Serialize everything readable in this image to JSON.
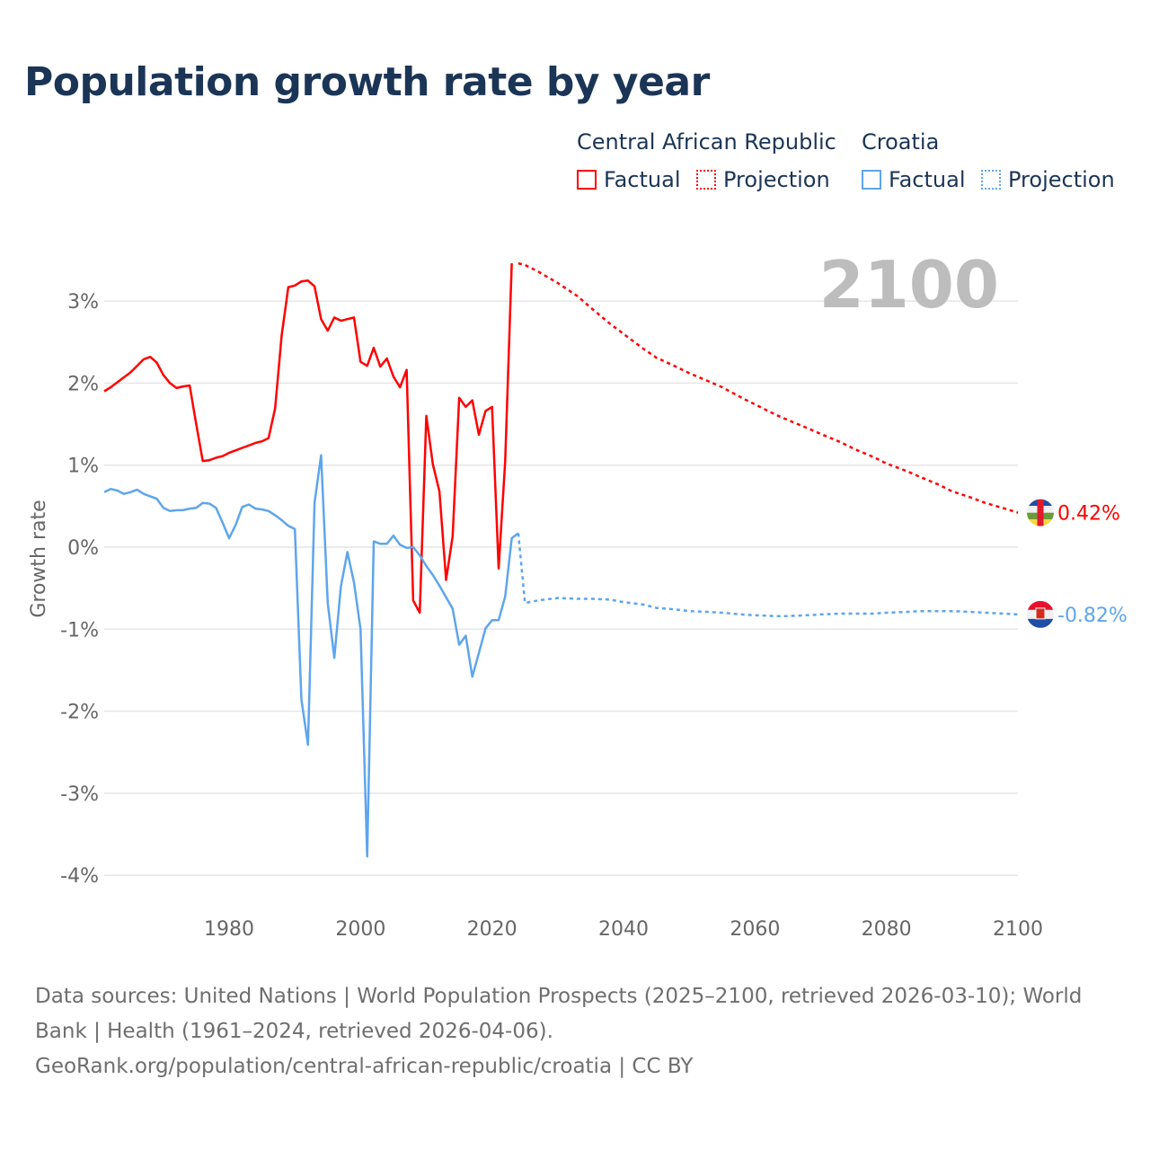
{
  "title": "Population growth rate by year",
  "legend": {
    "groups": [
      {
        "name": "Central African Republic",
        "factual": "Factual",
        "projection": "Projection",
        "color": "#ff0000"
      },
      {
        "name": "Croatia",
        "factual": "Factual",
        "projection": "Projection",
        "color": "#5ea5ec"
      }
    ]
  },
  "footer": {
    "line1": "Data sources: United Nations | World Population Prospects (2025–2100, retrieved 2026-03-10); World Bank | Health (1961–2024, retrieved 2026-04-06).",
    "line2": "GeoRank.org/population/central-african-republic/croatia | CC BY"
  },
  "chart_data": {
    "type": "line",
    "title": "Population growth rate by year",
    "xlabel": "",
    "ylabel": "Growth rate",
    "xlim": [
      1961,
      2100
    ],
    "ylim": [
      -4.2,
      3.6
    ],
    "year_marker": "2100",
    "x_ticks": [
      "1980",
      "2000",
      "2020",
      "2040",
      "2060",
      "2080",
      "2100"
    ],
    "x_tick_values": [
      1980,
      2000,
      2020,
      2040,
      2060,
      2080,
      2100
    ],
    "y_ticks": [
      "3%",
      "2%",
      "1%",
      "0%",
      "-1%",
      "-2%",
      "-3%",
      "-4%"
    ],
    "y_tick_values": [
      3,
      2,
      1,
      0,
      -1,
      -2,
      -3,
      -4
    ],
    "grid": true,
    "legend_position": "top-right",
    "series": [
      {
        "name": "Central African Republic",
        "color": "#ff0000",
        "end_label": "0.42%",
        "flag": "central-african-republic",
        "factual_start": 1961,
        "factual": [
          1.9,
          1.95,
          2.01,
          2.07,
          2.13,
          2.21,
          2.29,
          2.32,
          2.25,
          2.1,
          2.0,
          1.94,
          1.96,
          1.97,
          1.5,
          1.05,
          1.06,
          1.09,
          1.11,
          1.15,
          1.18,
          1.21,
          1.24,
          1.27,
          1.29,
          1.33,
          1.69,
          2.58,
          3.17,
          3.19,
          3.24,
          3.25,
          3.18,
          2.78,
          2.64,
          2.8,
          2.76,
          2.78,
          2.8,
          2.26,
          2.21,
          2.43,
          2.2,
          2.3,
          2.08,
          1.95,
          2.16,
          -0.65,
          -0.8,
          1.6,
          1.01,
          0.68,
          -0.4,
          0.13,
          1.82,
          1.71,
          1.79,
          1.37,
          1.66,
          1.71,
          -0.26,
          1.05,
          3.46
        ],
        "projection_x": [
          2024,
          2025,
          2027,
          2030,
          2033,
          2035,
          2038,
          2040,
          2043,
          2045,
          2048,
          2050,
          2053,
          2055,
          2058,
          2060,
          2063,
          2065,
          2068,
          2070,
          2073,
          2075,
          2078,
          2080,
          2083,
          2085,
          2088,
          2090,
          2093,
          2095,
          2098,
          2100
        ],
        "projection": [
          3.46,
          3.44,
          3.36,
          3.22,
          3.06,
          2.92,
          2.72,
          2.6,
          2.42,
          2.31,
          2.2,
          2.12,
          2.02,
          1.95,
          1.82,
          1.74,
          1.62,
          1.55,
          1.45,
          1.38,
          1.28,
          1.2,
          1.1,
          1.02,
          0.93,
          0.86,
          0.76,
          0.68,
          0.6,
          0.54,
          0.47,
          0.42
        ]
      },
      {
        "name": "Croatia",
        "color": "#5ea5ec",
        "end_label": "-0.82%",
        "flag": "croatia",
        "factual_start": 1961,
        "factual": [
          0.67,
          0.71,
          0.69,
          0.65,
          0.67,
          0.7,
          0.65,
          0.62,
          0.59,
          0.48,
          0.44,
          0.45,
          0.45,
          0.47,
          0.48,
          0.54,
          0.53,
          0.48,
          0.3,
          0.11,
          0.27,
          0.49,
          0.52,
          0.47,
          0.46,
          0.44,
          0.39,
          0.33,
          0.26,
          0.22,
          -1.86,
          -2.41,
          0.54,
          1.12,
          -0.68,
          -1.35,
          -0.48,
          -0.06,
          -0.43,
          -1.0,
          -3.77,
          0.07,
          0.04,
          0.04,
          0.14,
          0.03,
          -0.01,
          0.0,
          -0.1,
          -0.23,
          -0.34,
          -0.47,
          -0.61,
          -0.75,
          -1.19,
          -1.08,
          -1.58,
          -1.29,
          -0.99,
          -0.89,
          -0.89,
          -0.6,
          0.11,
          0.17
        ],
        "projection_x": [
          2024,
          2025,
          2027,
          2030,
          2033,
          2035,
          2038,
          2040,
          2043,
          2045,
          2048,
          2050,
          2053,
          2055,
          2058,
          2060,
          2063,
          2065,
          2068,
          2070,
          2073,
          2075,
          2078,
          2080,
          2083,
          2085,
          2088,
          2090,
          2093,
          2095,
          2098,
          2100
        ],
        "projection": [
          0.17,
          -0.68,
          -0.65,
          -0.62,
          -0.63,
          -0.63,
          -0.64,
          -0.67,
          -0.7,
          -0.74,
          -0.76,
          -0.78,
          -0.79,
          -0.8,
          -0.82,
          -0.83,
          -0.84,
          -0.84,
          -0.83,
          -0.82,
          -0.81,
          -0.81,
          -0.81,
          -0.8,
          -0.79,
          -0.78,
          -0.78,
          -0.78,
          -0.79,
          -0.8,
          -0.81,
          -0.82
        ]
      }
    ]
  }
}
